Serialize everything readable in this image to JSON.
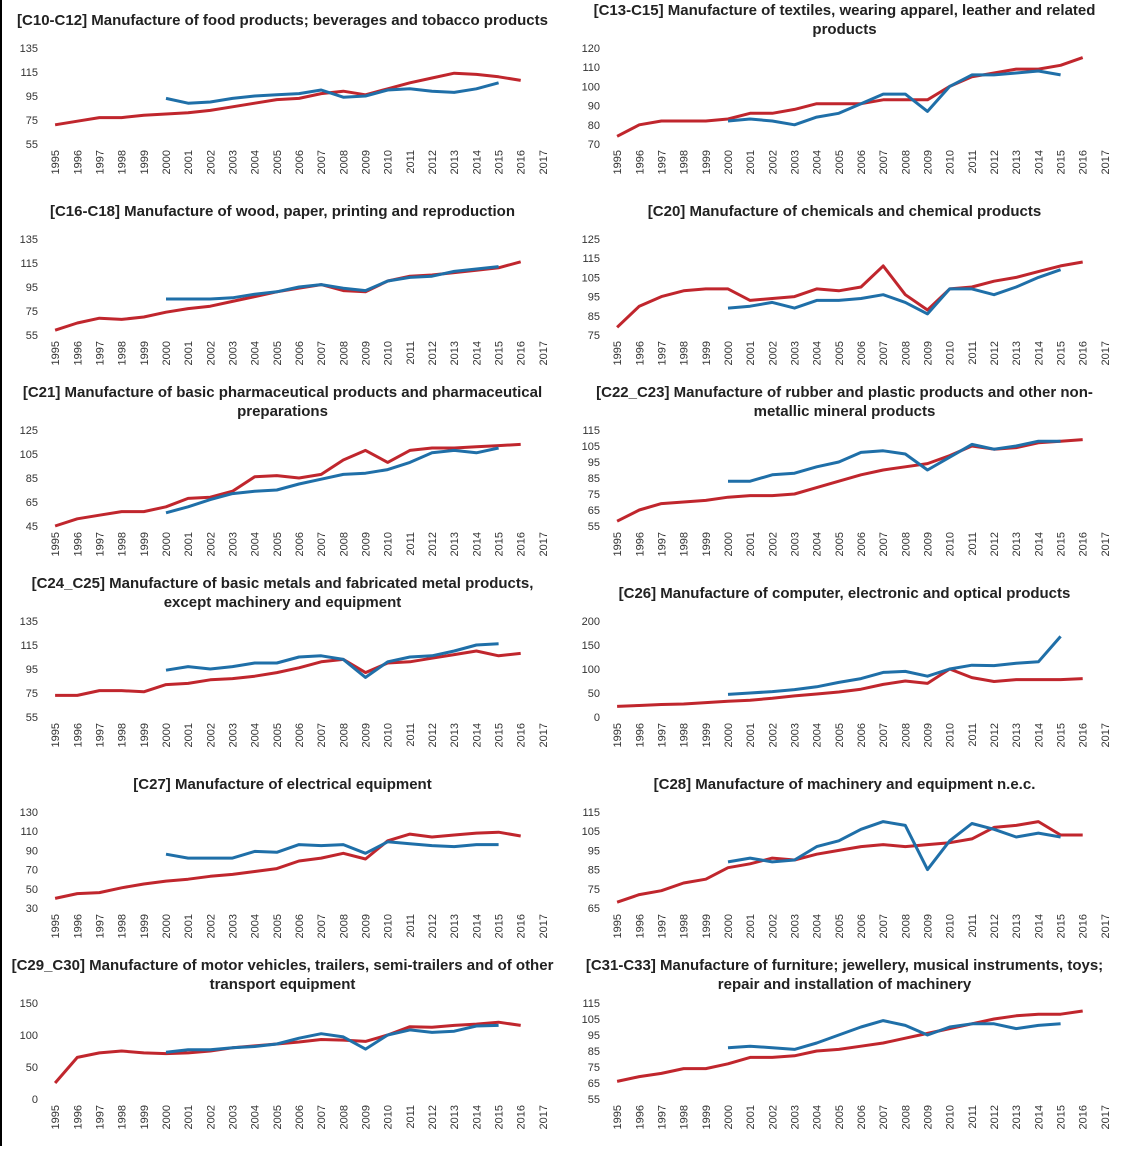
{
  "chart_data": [
    {
      "type": "line",
      "title": "[C10-C12] Manufacture of food products; beverages and tobacco products",
      "x": [
        "1995",
        "1996",
        "1997",
        "1998",
        "1999",
        "2000",
        "2001",
        "2002",
        "2003",
        "2004",
        "2005",
        "2006",
        "2007",
        "2008",
        "2009",
        "2010",
        "2011",
        "2012",
        "2013",
        "2014",
        "2015",
        "2016",
        "2017"
      ],
      "ylim": [
        55,
        135
      ],
      "yticks": [
        55,
        75,
        95,
        115,
        135
      ],
      "series": [
        {
          "color": "#c0262d",
          "values": [
            71,
            74,
            77,
            77,
            79,
            80,
            81,
            83,
            86,
            89,
            92,
            93,
            97,
            99,
            96,
            101,
            106,
            110,
            114,
            113,
            111,
            108,
            null
          ]
        },
        {
          "color": "#1f6fa8",
          "values": [
            null,
            null,
            null,
            null,
            null,
            93,
            89,
            90,
            93,
            95,
            96,
            97,
            100,
            94,
            95,
            100,
            101,
            99,
            98,
            101,
            106,
            null,
            null
          ]
        }
      ]
    },
    {
      "type": "line",
      "title": "[C13-C15] Manufacture of textiles, wearing apparel, leather and related products",
      "x": [
        "1995",
        "1996",
        "1997",
        "1998",
        "1999",
        "2000",
        "2001",
        "2002",
        "2003",
        "2004",
        "2005",
        "2006",
        "2007",
        "2008",
        "2009",
        "2010",
        "2011",
        "2012",
        "2013",
        "2014",
        "2015",
        "2016",
        "2017"
      ],
      "ylim": [
        70,
        120
      ],
      "yticks": [
        70,
        80,
        90,
        100,
        110,
        120
      ],
      "series": [
        {
          "color": "#c0262d",
          "values": [
            74,
            80,
            82,
            82,
            82,
            83,
            86,
            86,
            88,
            91,
            91,
            91,
            93,
            93,
            93,
            100,
            105,
            107,
            109,
            109,
            111,
            115,
            null
          ]
        },
        {
          "color": "#1f6fa8",
          "values": [
            null,
            null,
            null,
            null,
            null,
            82,
            83,
            82,
            80,
            84,
            86,
            91,
            96,
            96,
            87,
            100,
            106,
            106,
            107,
            108,
            106,
            null,
            null
          ]
        }
      ]
    },
    {
      "type": "line",
      "title": "[C16-C18] Manufacture of wood, paper, printing and reproduction",
      "x": [
        "1995",
        "1996",
        "1997",
        "1998",
        "1999",
        "2000",
        "2001",
        "2002",
        "2003",
        "2004",
        "2005",
        "2006",
        "2007",
        "2008",
        "2009",
        "2010",
        "2011",
        "2012",
        "2013",
        "2014",
        "2015",
        "2016",
        "2017"
      ],
      "ylim": [
        55,
        135
      ],
      "yticks": [
        55,
        75,
        95,
        115,
        135
      ],
      "series": [
        {
          "color": "#c0262d",
          "values": [
            59,
            65,
            69,
            68,
            70,
            74,
            77,
            79,
            83,
            87,
            91,
            94,
            97,
            92,
            91,
            100,
            104,
            105,
            107,
            109,
            111,
            116,
            null
          ]
        },
        {
          "color": "#1f6fa8",
          "values": [
            null,
            null,
            null,
            null,
            null,
            85,
            85,
            85,
            86,
            89,
            91,
            95,
            97,
            94,
            92,
            100,
            103,
            104,
            108,
            110,
            112,
            null,
            null
          ]
        }
      ]
    },
    {
      "type": "line",
      "title": "[C20] Manufacture of chemicals and chemical products",
      "x": [
        "1995",
        "1996",
        "1997",
        "1998",
        "1999",
        "2000",
        "2001",
        "2002",
        "2003",
        "2004",
        "2005",
        "2006",
        "2007",
        "2008",
        "2009",
        "2010",
        "2011",
        "2012",
        "2013",
        "2014",
        "2015",
        "2016",
        "2017"
      ],
      "ylim": [
        75,
        125
      ],
      "yticks": [
        75,
        85,
        95,
        105,
        115,
        125
      ],
      "series": [
        {
          "color": "#c0262d",
          "values": [
            79,
            90,
            95,
            98,
            99,
            99,
            93,
            94,
            95,
            99,
            98,
            100,
            111,
            96,
            88,
            99,
            100,
            103,
            105,
            108,
            111,
            113,
            null
          ]
        },
        {
          "color": "#1f6fa8",
          "values": [
            null,
            null,
            null,
            null,
            null,
            89,
            90,
            92,
            89,
            93,
            93,
            94,
            96,
            92,
            86,
            99,
            99,
            96,
            100,
            105,
            109,
            null,
            null
          ]
        }
      ]
    },
    {
      "type": "line",
      "title": "[C21] Manufacture of basic pharmaceutical products and pharmaceutical preparations",
      "x": [
        "1995",
        "1996",
        "1997",
        "1998",
        "1999",
        "2000",
        "2001",
        "2002",
        "2003",
        "2004",
        "2005",
        "2006",
        "2007",
        "2008",
        "2009",
        "2010",
        "2011",
        "2012",
        "2013",
        "2014",
        "2015",
        "2016",
        "2017"
      ],
      "ylim": [
        45,
        125
      ],
      "yticks": [
        45,
        65,
        85,
        105,
        125
      ],
      "series": [
        {
          "color": "#c0262d",
          "values": [
            45,
            51,
            54,
            57,
            57,
            61,
            68,
            69,
            74,
            86,
            87,
            85,
            88,
            100,
            108,
            98,
            108,
            110,
            110,
            111,
            112,
            113,
            null
          ]
        },
        {
          "color": "#1f6fa8",
          "values": [
            null,
            null,
            null,
            null,
            null,
            56,
            61,
            67,
            72,
            74,
            75,
            80,
            84,
            88,
            89,
            92,
            98,
            106,
            108,
            106,
            110,
            null,
            null
          ]
        }
      ]
    },
    {
      "type": "line",
      "title": "[C22_C23] Manufacture of rubber and plastic products and other non-metallic mineral products",
      "x": [
        "1995",
        "1996",
        "1997",
        "1998",
        "1999",
        "2000",
        "2001",
        "2002",
        "2003",
        "2004",
        "2005",
        "2006",
        "2007",
        "2008",
        "2009",
        "2010",
        "2011",
        "2012",
        "2013",
        "2014",
        "2015",
        "2016",
        "2017"
      ],
      "ylim": [
        55,
        115
      ],
      "yticks": [
        55,
        65,
        75,
        85,
        95,
        105,
        115
      ],
      "series": [
        {
          "color": "#c0262d",
          "values": [
            58,
            65,
            69,
            70,
            71,
            73,
            74,
            74,
            75,
            79,
            83,
            87,
            90,
            92,
            94,
            99,
            105,
            103,
            104,
            107,
            108,
            109,
            null
          ]
        },
        {
          "color": "#1f6fa8",
          "values": [
            null,
            null,
            null,
            null,
            null,
            83,
            83,
            87,
            88,
            92,
            95,
            101,
            102,
            100,
            90,
            98,
            106,
            103,
            105,
            108,
            108,
            null,
            null
          ]
        }
      ]
    },
    {
      "type": "line",
      "title": "[C24_C25] Manufacture of basic metals and fabricated metal products, except machinery and equipment",
      "x": [
        "1995",
        "1996",
        "1997",
        "1998",
        "1999",
        "2000",
        "2001",
        "2002",
        "2003",
        "2004",
        "2005",
        "2006",
        "2007",
        "2008",
        "2009",
        "2010",
        "2011",
        "2012",
        "2013",
        "2014",
        "2015",
        "2016",
        "2017"
      ],
      "ylim": [
        55,
        135
      ],
      "yticks": [
        55,
        75,
        95,
        115,
        135
      ],
      "series": [
        {
          "color": "#c0262d",
          "values": [
            73,
            73,
            77,
            77,
            76,
            82,
            83,
            86,
            87,
            89,
            92,
            96,
            101,
            103,
            92,
            100,
            101,
            104,
            107,
            110,
            106,
            108,
            null
          ]
        },
        {
          "color": "#1f6fa8",
          "values": [
            null,
            null,
            null,
            null,
            null,
            94,
            97,
            95,
            97,
            100,
            100,
            105,
            106,
            103,
            88,
            101,
            105,
            106,
            110,
            115,
            116,
            null,
            null
          ]
        }
      ]
    },
    {
      "type": "line",
      "title": "[C26] Manufacture of computer, electronic and optical products",
      "x": [
        "1995",
        "1996",
        "1997",
        "1998",
        "1999",
        "2000",
        "2001",
        "2002",
        "2003",
        "2004",
        "2005",
        "2006",
        "2007",
        "2008",
        "2009",
        "2010",
        "2011",
        "2012",
        "2013",
        "2014",
        "2015",
        "2016",
        "2017"
      ],
      "ylim": [
        0,
        200
      ],
      "yticks": [
        0,
        50,
        100,
        150,
        200
      ],
      "series": [
        {
          "color": "#c0262d",
          "values": [
            22,
            24,
            26,
            27,
            30,
            33,
            35,
            39,
            44,
            48,
            52,
            58,
            68,
            75,
            70,
            100,
            82,
            74,
            78,
            78,
            78,
            80,
            null
          ]
        },
        {
          "color": "#1f6fa8",
          "values": [
            null,
            null,
            null,
            null,
            null,
            47,
            50,
            53,
            57,
            63,
            72,
            80,
            93,
            95,
            85,
            100,
            108,
            107,
            112,
            115,
            168,
            null,
            null
          ]
        }
      ]
    },
    {
      "type": "line",
      "title": "[C27] Manufacture of electrical equipment",
      "x": [
        "1995",
        "1996",
        "1997",
        "1998",
        "1999",
        "2000",
        "2001",
        "2002",
        "2003",
        "2004",
        "2005",
        "2006",
        "2007",
        "2008",
        "2009",
        "2010",
        "2011",
        "2012",
        "2013",
        "2014",
        "2015",
        "2016",
        "2017"
      ],
      "ylim": [
        30,
        130
      ],
      "yticks": [
        30,
        50,
        70,
        90,
        110,
        130
      ],
      "series": [
        {
          "color": "#c0262d",
          "values": [
            40,
            45,
            46,
            51,
            55,
            58,
            60,
            63,
            65,
            68,
            71,
            79,
            82,
            87,
            81,
            100,
            107,
            104,
            106,
            108,
            109,
            105,
            null
          ]
        },
        {
          "color": "#1f6fa8",
          "values": [
            null,
            null,
            null,
            null,
            null,
            86,
            82,
            82,
            82,
            89,
            88,
            96,
            95,
            96,
            87,
            99,
            97,
            95,
            94,
            96,
            96,
            null,
            null
          ]
        }
      ]
    },
    {
      "type": "line",
      "title": "[C28] Manufacture of machinery and equipment n.e.c.",
      "x": [
        "1995",
        "1996",
        "1997",
        "1998",
        "1999",
        "2000",
        "2001",
        "2002",
        "2003",
        "2004",
        "2005",
        "2006",
        "2007",
        "2008",
        "2009",
        "2010",
        "2011",
        "2012",
        "2013",
        "2014",
        "2015",
        "2016",
        "2017"
      ],
      "ylim": [
        65,
        115
      ],
      "yticks": [
        65,
        75,
        85,
        95,
        105,
        115
      ],
      "series": [
        {
          "color": "#c0262d",
          "values": [
            68,
            72,
            74,
            78,
            80,
            86,
            88,
            91,
            90,
            93,
            95,
            97,
            98,
            97,
            98,
            99,
            101,
            107,
            108,
            110,
            103,
            103,
            null
          ]
        },
        {
          "color": "#1f6fa8",
          "values": [
            null,
            null,
            null,
            null,
            null,
            89,
            91,
            89,
            90,
            97,
            100,
            106,
            110,
            108,
            85,
            100,
            109,
            106,
            102,
            104,
            102,
            null,
            null
          ]
        }
      ]
    },
    {
      "type": "line",
      "title": "[C29_C30] Manufacture of motor vehicles, trailers, semi-trailers and of other transport equipment",
      "x": [
        "1995",
        "1996",
        "1997",
        "1998",
        "1999",
        "2000",
        "2001",
        "2002",
        "2003",
        "2004",
        "2005",
        "2006",
        "2007",
        "2008",
        "2009",
        "2010",
        "2011",
        "2012",
        "2013",
        "2014",
        "2015",
        "2016",
        "2017"
      ],
      "ylim": [
        0,
        150
      ],
      "yticks": [
        0,
        50,
        100,
        150
      ],
      "series": [
        {
          "color": "#c0262d",
          "values": [
            25,
            65,
            72,
            75,
            72,
            71,
            72,
            75,
            80,
            83,
            86,
            89,
            93,
            92,
            90,
            100,
            113,
            112,
            115,
            117,
            120,
            115,
            null
          ]
        },
        {
          "color": "#1f6fa8",
          "values": [
            null,
            null,
            null,
            null,
            null,
            73,
            77,
            77,
            80,
            82,
            86,
            95,
            102,
            97,
            78,
            100,
            108,
            104,
            106,
            114,
            115,
            null,
            null
          ]
        }
      ]
    },
    {
      "type": "line",
      "title": "[C31-C33] Manufacture of furniture; jewellery, musical instruments, toys; repair and installation of machinery",
      "x": [
        "1995",
        "1996",
        "1997",
        "1998",
        "1999",
        "2000",
        "2001",
        "2002",
        "2003",
        "2004",
        "2005",
        "2006",
        "2007",
        "2008",
        "2009",
        "2010",
        "2011",
        "2012",
        "2013",
        "2014",
        "2015",
        "2016",
        "2017"
      ],
      "ylim": [
        55,
        115
      ],
      "yticks": [
        55,
        65,
        75,
        85,
        95,
        105,
        115
      ],
      "series": [
        {
          "color": "#c0262d",
          "values": [
            66,
            69,
            71,
            74,
            74,
            77,
            81,
            81,
            82,
            85,
            86,
            88,
            90,
            93,
            96,
            99,
            102,
            105,
            107,
            108,
            108,
            110,
            null
          ]
        },
        {
          "color": "#1f6fa8",
          "values": [
            null,
            null,
            null,
            null,
            null,
            87,
            88,
            87,
            86,
            90,
            95,
            100,
            104,
            101,
            95,
            100,
            102,
            102,
            99,
            101,
            102,
            null,
            null
          ]
        }
      ]
    }
  ]
}
